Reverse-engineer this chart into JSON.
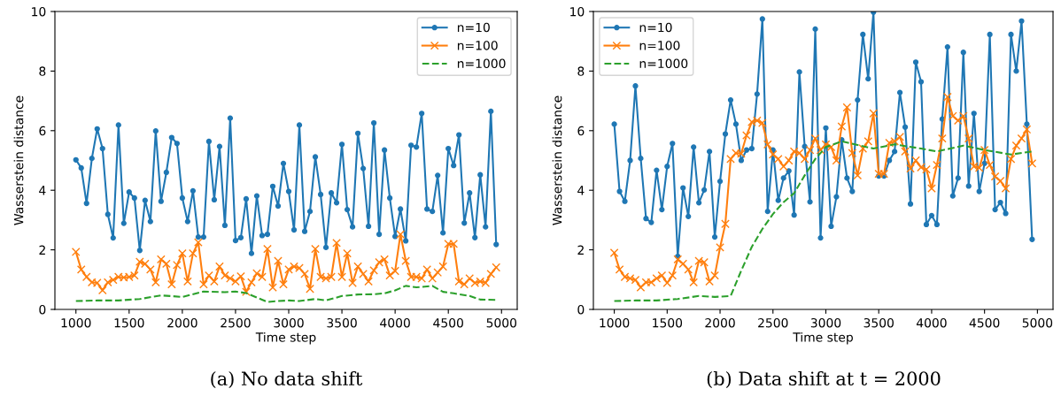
{
  "chart_data": [
    {
      "type": "line",
      "xlabel": "Time step",
      "ylabel": "Wasserstein distance",
      "xlim": [
        802.5,
        5147.5
      ],
      "ylim": [
        0,
        10
      ],
      "xticks": [
        1000,
        1500,
        2000,
        2500,
        3000,
        3500,
        4000,
        4500,
        5000
      ],
      "yticks": [
        0,
        2,
        4,
        6,
        8,
        10
      ],
      "grid": false,
      "legend": "top right",
      "annotations": [
        "(a) No data shift"
      ],
      "x": [
        1000,
        1050,
        1100,
        1150,
        1200,
        1250,
        1300,
        1350,
        1400,
        1450,
        1500,
        1550,
        1600,
        1650,
        1700,
        1750,
        1800,
        1850,
        1900,
        1950,
        2000,
        2050,
        2100,
        2150,
        2200,
        2250,
        2300,
        2350,
        2400,
        2450,
        2500,
        2550,
        2600,
        2650,
        2700,
        2750,
        2800,
        2850,
        2900,
        2950,
        3000,
        3050,
        3100,
        3150,
        3200,
        3250,
        3300,
        3350,
        3400,
        3450,
        3500,
        3550,
        3600,
        3650,
        3700,
        3750,
        3800,
        3850,
        3900,
        3950,
        4000,
        4050,
        4100,
        4150,
        4200,
        4250,
        4300,
        4350,
        4400,
        4450,
        4500,
        4550,
        4600,
        4650,
        4700,
        4750,
        4800,
        4850,
        4900,
        4950
      ],
      "series": [
        {
          "name": "n=10",
          "color": "#1f77b4",
          "marker": "circle",
          "line_style": "solid",
          "values": [
            5.02,
            4.75,
            3.56,
            5.07,
            6.06,
            5.4,
            3.19,
            2.4,
            6.19,
            2.89,
            3.94,
            3.74,
            1.98,
            3.66,
            2.95,
            5.99,
            3.63,
            4.6,
            5.77,
            5.57,
            3.74,
            2.95,
            3.98,
            2.43,
            2.43,
            5.64,
            3.68,
            5.47,
            2.82,
            6.42,
            2.31,
            2.41,
            3.71,
            1.88,
            3.81,
            2.48,
            2.52,
            4.13,
            3.47,
            4.9,
            3.96,
            2.67,
            6.19,
            2.62,
            3.29,
            5.12,
            3.86,
            2.08,
            3.91,
            3.58,
            5.54,
            3.35,
            2.77,
            5.91,
            4.73,
            2.79,
            6.26,
            2.52,
            5.35,
            3.74,
            2.45,
            3.37,
            2.3,
            5.51,
            5.45,
            6.58,
            3.37,
            3.29,
            4.5,
            2.57,
            5.4,
            4.83,
            5.86,
            2.9,
            3.91,
            2.41,
            4.52,
            2.77,
            6.65,
            2.18
          ]
        },
        {
          "name": "n=100",
          "color": "#ff7f0e",
          "marker": "cross",
          "line_style": "solid",
          "values": [
            1.93,
            1.34,
            1.09,
            0.91,
            0.89,
            0.64,
            0.91,
            0.99,
            1.09,
            1.07,
            1.09,
            1.14,
            1.6,
            1.53,
            1.34,
            0.91,
            1.68,
            1.53,
            0.84,
            1.49,
            1.88,
            0.94,
            1.88,
            2.25,
            0.84,
            1.14,
            0.94,
            1.44,
            1.14,
            1.04,
            0.94,
            1.11,
            0.59,
            0.91,
            1.21,
            1.09,
            2.03,
            0.74,
            1.63,
            0.84,
            1.34,
            1.44,
            1.39,
            1.19,
            0.69,
            2.03,
            1.09,
            1.04,
            1.09,
            2.23,
            1.09,
            1.88,
            0.89,
            1.44,
            1.19,
            0.94,
            1.31,
            1.58,
            1.68,
            1.14,
            1.29,
            2.52,
            1.63,
            1.09,
            1.09,
            1.04,
            1.34,
            1.04,
            1.24,
            1.44,
            2.2,
            2.2,
            0.94,
            0.84,
            1.04,
            0.89,
            0.94,
            0.89,
            1.19,
            1.41
          ]
        },
        {
          "name": "n=1000",
          "color": "#2ca02c",
          "marker": "none",
          "line_style": "dashed",
          "x": [
            1000,
            1200,
            1400,
            1600,
            1800,
            2000,
            2200,
            2400,
            2500,
            2600,
            2700,
            2800,
            2900,
            3000,
            3100,
            3250,
            3350,
            3500,
            3650,
            3800,
            3900,
            4000,
            4100,
            4200,
            4350,
            4450,
            4550,
            4700,
            4800,
            4950
          ],
          "values": [
            0.28,
            0.3,
            0.3,
            0.35,
            0.47,
            0.42,
            0.6,
            0.58,
            0.6,
            0.55,
            0.4,
            0.25,
            0.28,
            0.3,
            0.28,
            0.35,
            0.3,
            0.45,
            0.5,
            0.51,
            0.54,
            0.64,
            0.79,
            0.74,
            0.79,
            0.59,
            0.54,
            0.45,
            0.33,
            0.32
          ]
        }
      ]
    },
    {
      "type": "line",
      "xlabel": "Time step",
      "ylabel": "Wasserstein distance",
      "xlim": [
        802.5,
        5147.5
      ],
      "ylim": [
        0,
        10
      ],
      "xticks": [
        1000,
        1500,
        2000,
        2500,
        3000,
        3500,
        4000,
        4500,
        5000
      ],
      "yticks": [
        0,
        2,
        4,
        6,
        8,
        10
      ],
      "grid": false,
      "legend": "top left",
      "annotations": [
        "(b) Data shift at t = 2000"
      ],
      "x": [
        1000,
        1050,
        1100,
        1150,
        1200,
        1250,
        1300,
        1350,
        1400,
        1450,
        1500,
        1550,
        1600,
        1650,
        1700,
        1750,
        1800,
        1850,
        1900,
        1950,
        2000,
        2050,
        2100,
        2150,
        2200,
        2250,
        2300,
        2350,
        2400,
        2450,
        2500,
        2550,
        2600,
        2650,
        2700,
        2750,
        2800,
        2850,
        2900,
        2950,
        3000,
        3050,
        3100,
        3150,
        3200,
        3250,
        3300,
        3350,
        3400,
        3450,
        3500,
        3550,
        3600,
        3650,
        3700,
        3750,
        3800,
        3850,
        3900,
        3950,
        4000,
        4050,
        4100,
        4150,
        4200,
        4250,
        4300,
        4350,
        4400,
        4450,
        4500,
        4550,
        4600,
        4650,
        4700,
        4750,
        4800,
        4850,
        4900,
        4950
      ],
      "series": [
        {
          "name": "n=10",
          "color": "#1f77b4",
          "marker": "circle",
          "line_style": "solid",
          "values": [
            6.22,
            3.96,
            3.63,
            5.0,
            7.5,
            5.07,
            3.05,
            2.92,
            4.67,
            3.35,
            4.8,
            5.57,
            1.78,
            4.08,
            3.12,
            5.45,
            3.58,
            4.01,
            5.3,
            2.43,
            4.3,
            5.89,
            7.03,
            6.22,
            5.0,
            5.35,
            5.4,
            7.23,
            9.75,
            3.29,
            5.35,
            3.66,
            4.41,
            4.65,
            3.17,
            7.97,
            5.47,
            3.61,
            9.41,
            2.4,
            6.09,
            2.79,
            3.78,
            5.69,
            4.41,
            3.96,
            7.03,
            9.23,
            7.74,
            9.98,
            4.48,
            4.48,
            5.0,
            5.3,
            7.28,
            6.12,
            3.54,
            8.3,
            7.64,
            2.85,
            3.15,
            2.85,
            6.39,
            8.81,
            3.81,
            4.41,
            8.63,
            4.14,
            6.58,
            3.96,
            4.9,
            9.23,
            3.35,
            3.59,
            3.22,
            9.23,
            8.0,
            9.68,
            6.22,
            2.35
          ]
        },
        {
          "name": "n=100",
          "color": "#ff7f0e",
          "marker": "cross",
          "line_style": "solid",
          "values": [
            1.9,
            1.34,
            1.09,
            1.04,
            0.99,
            0.74,
            0.91,
            0.91,
            1.04,
            1.14,
            0.89,
            1.14,
            1.68,
            1.53,
            1.34,
            0.91,
            1.63,
            1.58,
            0.94,
            1.14,
            2.08,
            2.87,
            5.05,
            5.25,
            5.23,
            5.84,
            6.29,
            6.34,
            6.26,
            5.54,
            5.2,
            5.05,
            4.8,
            5.0,
            5.3,
            5.25,
            5.05,
            5.35,
            5.74,
            5.35,
            5.54,
            5.45,
            5.0,
            6.14,
            6.78,
            5.25,
            4.5,
            5.4,
            5.64,
            6.58,
            4.55,
            4.55,
            5.59,
            5.64,
            5.79,
            5.3,
            4.73,
            5.0,
            4.77,
            4.7,
            4.06,
            4.85,
            5.74,
            7.13,
            6.49,
            6.34,
            6.49,
            5.74,
            4.8,
            4.75,
            5.35,
            4.85,
            4.46,
            4.31,
            4.06,
            5.05,
            5.5,
            5.74,
            6.04,
            4.9
          ]
        },
        {
          "name": "n=1000",
          "color": "#2ca02c",
          "marker": "none",
          "line_style": "dashed",
          "x": [
            1000,
            1200,
            1400,
            1600,
            1800,
            1950,
            2100,
            2200,
            2300,
            2400,
            2500,
            2600,
            2700,
            2800,
            2900,
            3000,
            3150,
            3450,
            3650,
            3900,
            4050,
            4300,
            4500,
            4750,
            4950
          ],
          "values": [
            0.28,
            0.3,
            0.3,
            0.35,
            0.45,
            0.42,
            0.45,
            1.3,
            2.1,
            2.7,
            3.2,
            3.6,
            3.9,
            4.5,
            5.05,
            5.45,
            5.64,
            5.4,
            5.54,
            5.4,
            5.3,
            5.5,
            5.35,
            5.2,
            5.3
          ]
        }
      ]
    }
  ]
}
